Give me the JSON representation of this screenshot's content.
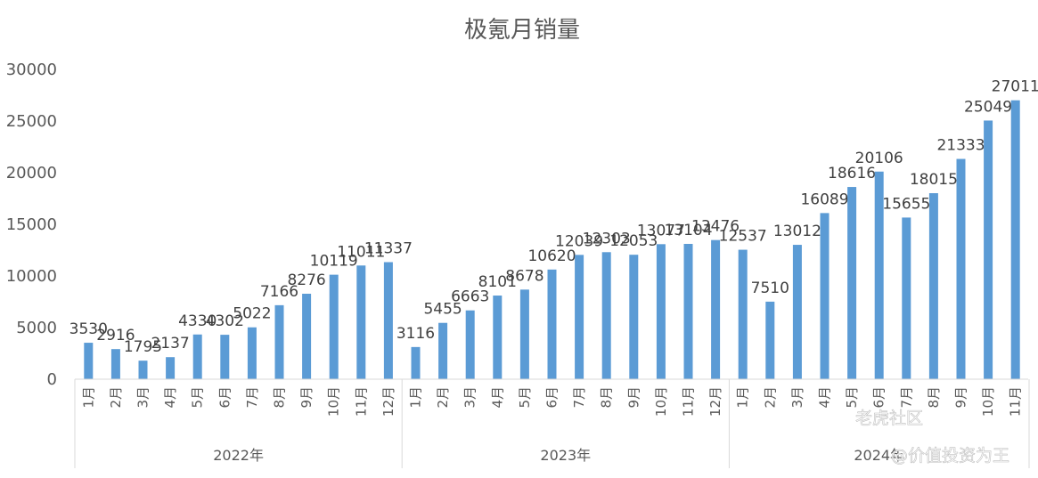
{
  "chart_data": {
    "type": "bar",
    "title": "极氪月销量",
    "ylim": [
      0,
      30000
    ],
    "yticks": [
      0,
      5000,
      10000,
      15000,
      20000,
      25000,
      30000
    ],
    "grid": false,
    "legend": "none",
    "bar_color": "#5B9BD5",
    "groups": [
      {
        "label": "2022年",
        "categories": [
          "1月",
          "2月",
          "3月",
          "4月",
          "5月",
          "6月",
          "7月",
          "8月",
          "9月",
          "10月",
          "11月",
          "12月"
        ],
        "values": [
          3530,
          2916,
          1795,
          2137,
          4330,
          4302,
          5022,
          7166,
          8276,
          10119,
          11011,
          11337
        ]
      },
      {
        "label": "2023年",
        "categories": [
          "1月",
          "2月",
          "3月",
          "4月",
          "5月",
          "6月",
          "7月",
          "8月",
          "9月",
          "10月",
          "11月",
          "12月"
        ],
        "values": [
          3116,
          5455,
          6663,
          8101,
          8678,
          10620,
          12039,
          12303,
          12053,
          13077,
          13104,
          13476
        ]
      },
      {
        "label": "2024年",
        "categories": [
          "1月",
          "2月",
          "3月",
          "4月",
          "5月",
          "6月",
          "7月",
          "8月",
          "9月",
          "10月",
          "11月"
        ],
        "values": [
          12537,
          7510,
          13012,
          16089,
          18616,
          20106,
          15655,
          18015,
          21333,
          25049,
          27011
        ]
      }
    ]
  },
  "watermark": {
    "site": "老虎社区",
    "author": "@价值投资为王"
  }
}
